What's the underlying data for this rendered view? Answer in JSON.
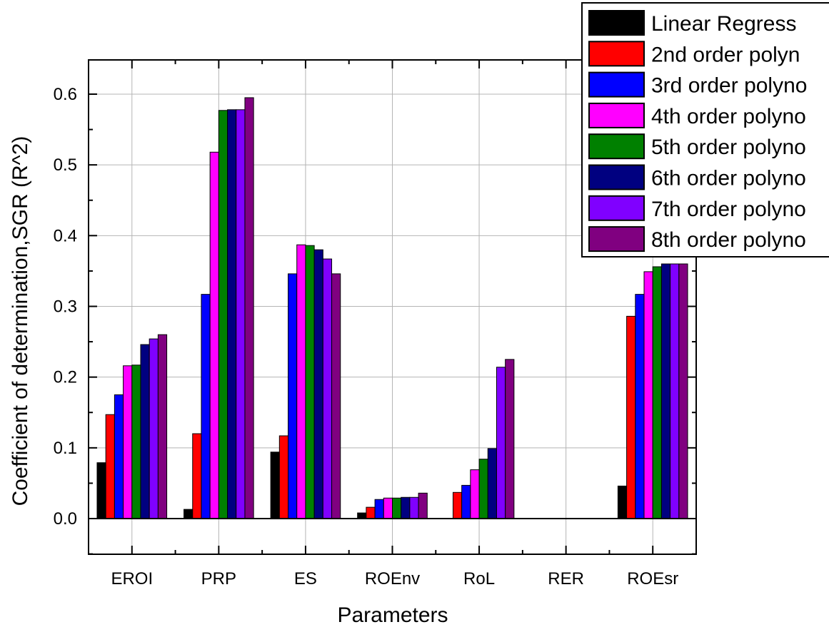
{
  "chart_data": {
    "type": "bar",
    "title": "",
    "xlabel": "Parameters",
    "ylabel": "Coefficient of determination,SGR (R^2)",
    "ylim": [
      -0.05,
      0.65
    ],
    "yticks": [
      "0.0",
      "0.1",
      "0.2",
      "0.3",
      "0.4",
      "0.5",
      "0.6"
    ],
    "grid": true,
    "legend_position": "top-right",
    "categories": [
      "EROI",
      "PRP",
      "ES",
      "ROEnv",
      "RoL",
      "RER",
      "ROEsr"
    ],
    "series": [
      {
        "name": "Linear Regress",
        "color": "#000000",
        "values": [
          0.079,
          0.013,
          0.094,
          0.008,
          0,
          0,
          0.046
        ]
      },
      {
        "name": "2nd order polyn",
        "color": "#ff0000",
        "values": [
          0.147,
          0.12,
          0.117,
          0.016,
          0.037,
          0,
          0.286
        ]
      },
      {
        "name": "3rd order polyno",
        "color": "#0000ff",
        "values": [
          0.175,
          0.317,
          0.346,
          0.027,
          0.047,
          0,
          0.317
        ]
      },
      {
        "name": "4th order polyno",
        "color": "#ff00ff",
        "values": [
          0.216,
          0.518,
          0.387,
          0.029,
          0.069,
          0,
          0.349
        ]
      },
      {
        "name": "5th order polyno",
        "color": "#008000",
        "values": [
          0.217,
          0.577,
          0.386,
          0.029,
          0.084,
          0,
          0.356
        ]
      },
      {
        "name": "6th order polyno",
        "color": "#000080",
        "values": [
          0.246,
          0.578,
          0.38,
          0.03,
          0.099,
          0,
          0.36
        ]
      },
      {
        "name": "7th order polyno",
        "color": "#8000ff",
        "values": [
          0.254,
          0.578,
          0.367,
          0.03,
          0.214,
          0,
          0.36
        ]
      },
      {
        "name": "8th order polyno",
        "color": "#800080",
        "values": [
          0.26,
          0.595,
          0.346,
          0.036,
          0.225,
          0,
          0.36
        ]
      }
    ]
  }
}
